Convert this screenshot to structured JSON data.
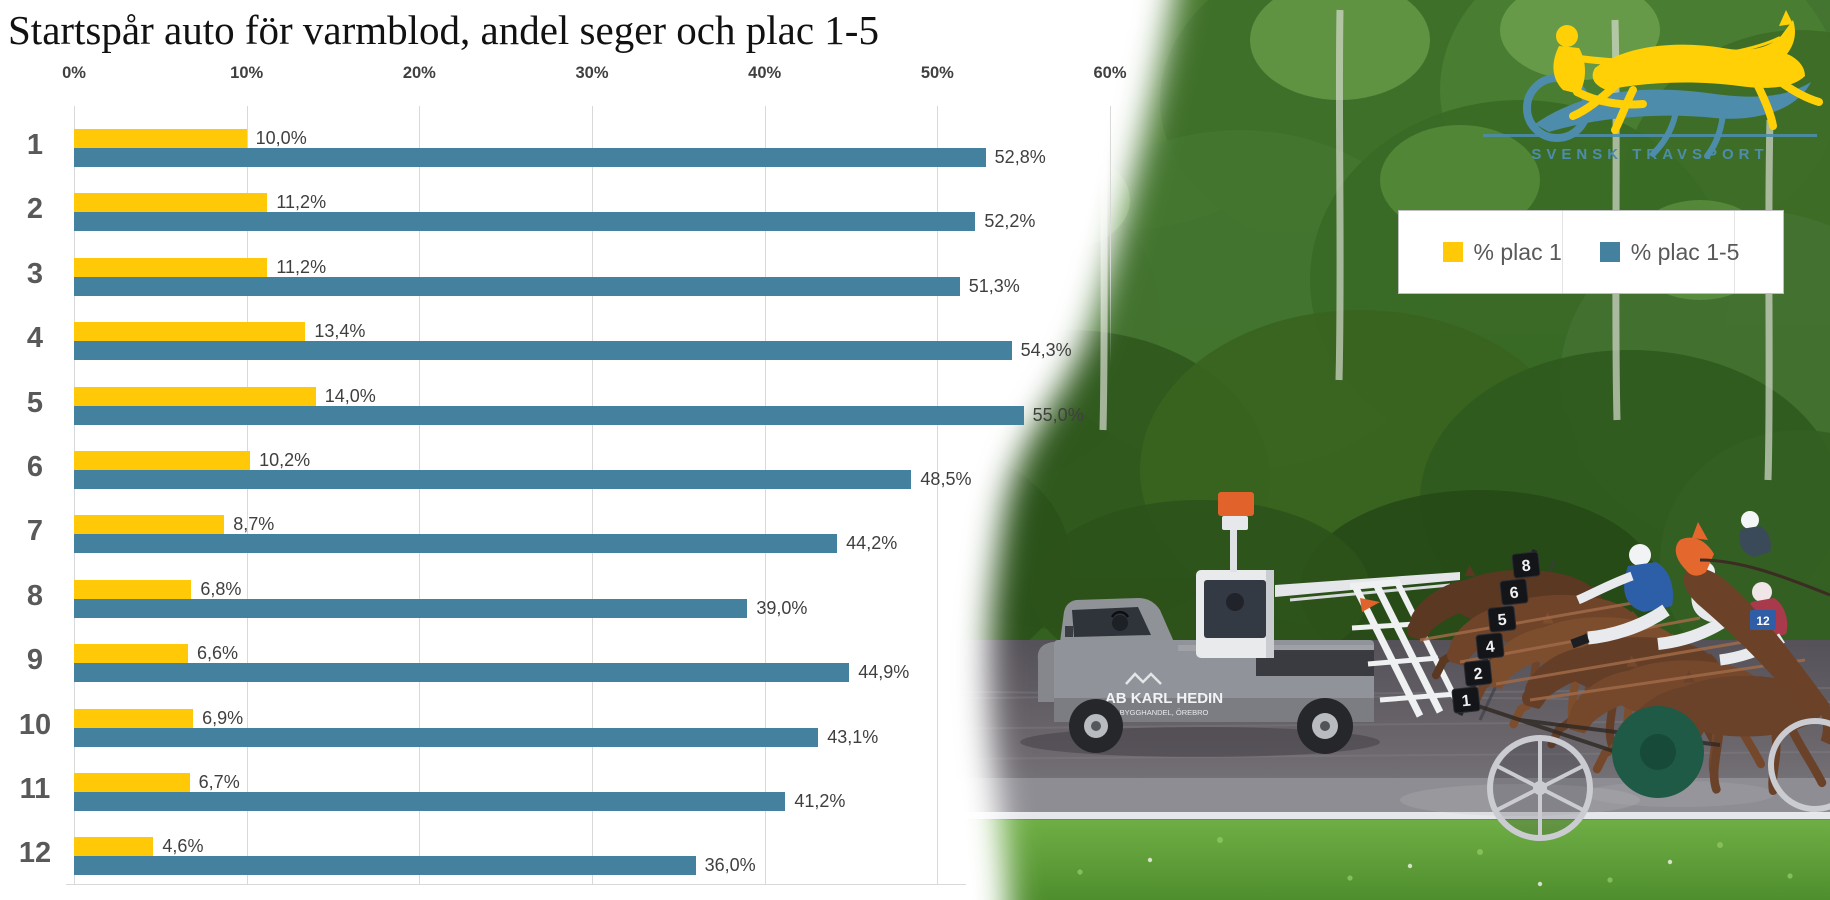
{
  "title": "Startspår auto för varmblod, andel seger och plac 1-5",
  "chart_data": {
    "type": "bar",
    "orientation": "horizontal",
    "title": "Startspår auto för varmblod, andel seger och plac 1-5",
    "categories": [
      "1",
      "2",
      "3",
      "4",
      "5",
      "6",
      "7",
      "8",
      "9",
      "10",
      "11",
      "12"
    ],
    "series": [
      {
        "name": "% plac 1",
        "color": "#ffc907",
        "values": [
          10.0,
          11.2,
          11.2,
          13.4,
          14.0,
          10.2,
          8.7,
          6.8,
          6.6,
          6.9,
          6.7,
          4.6
        ],
        "labels": [
          "10,0%",
          "11,2%",
          "11,2%",
          "13,4%",
          "14,0%",
          "10,2%",
          "8,7%",
          "6,8%",
          "6,6%",
          "6,9%",
          "6,7%",
          "4,6%"
        ]
      },
      {
        "name": "% plac 1-5",
        "color": "#43819f",
        "values": [
          52.8,
          52.2,
          51.3,
          54.3,
          55.0,
          48.5,
          44.2,
          39.0,
          44.9,
          43.1,
          41.2,
          36.0
        ],
        "labels": [
          "52,8%",
          "52,2%",
          "51,3%",
          "54,3%",
          "55,0%",
          "48,5%",
          "44,2%",
          "39,0%",
          "44,9%",
          "43,1%",
          "41,2%",
          "36,0%"
        ]
      }
    ],
    "x_axis": {
      "min": 0,
      "max": 60,
      "tick_step": 10,
      "ticks": [
        "0%",
        "10%",
        "20%",
        "30%",
        "40%",
        "50%",
        "60%"
      ],
      "grid": true
    },
    "legend": {
      "position": "middle-right",
      "items": [
        "% plac 1",
        "% plac 1-5"
      ]
    }
  },
  "legend": {
    "items": [
      {
        "label": "% plac 1",
        "color": "#ffc907"
      },
      {
        "label": "% plac 1-5",
        "color": "#43819f"
      }
    ]
  },
  "logo": {
    "text": "SVENSK TRAVSPORT",
    "yellow": "#ffd006",
    "blue": "#4d8dab"
  },
  "photo": {
    "truck_text_line1": "AB KARL HEDIN",
    "truck_text_line2": "BYGGHANDEL, ÖREBRO",
    "gate_numbers": [
      "1",
      "2",
      "4",
      "5",
      "6",
      "8"
    ],
    "horse_cloth_number": "12"
  },
  "colors": {
    "series1": "#ffc907",
    "series2": "#43819f",
    "gridline": "#d9d9d9",
    "axis_text": "#404040",
    "category_text": "#595959"
  }
}
